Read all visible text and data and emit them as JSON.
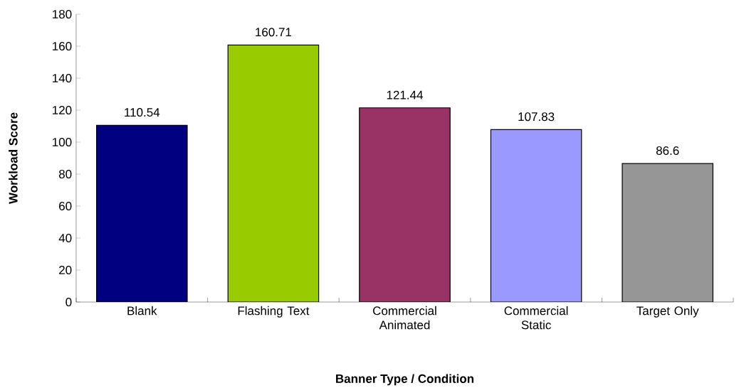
{
  "chart_data": {
    "type": "bar",
    "xlabel": "Banner Type / Condition",
    "ylabel": "Workload Score",
    "categories": [
      "Blank",
      "Flashing Text",
      "Commercial Animated",
      "Commercial Static",
      "Target Only"
    ],
    "values": [
      110.54,
      160.71,
      121.44,
      107.83,
      86.6
    ],
    "colors": [
      "#000080",
      "#99cc00",
      "#993366",
      "#9999ff",
      "#969696"
    ],
    "ylim": [
      0,
      180
    ],
    "yticks": [
      0,
      20,
      40,
      60,
      80,
      100,
      120,
      140,
      160,
      180
    ],
    "data_labels": true
  }
}
